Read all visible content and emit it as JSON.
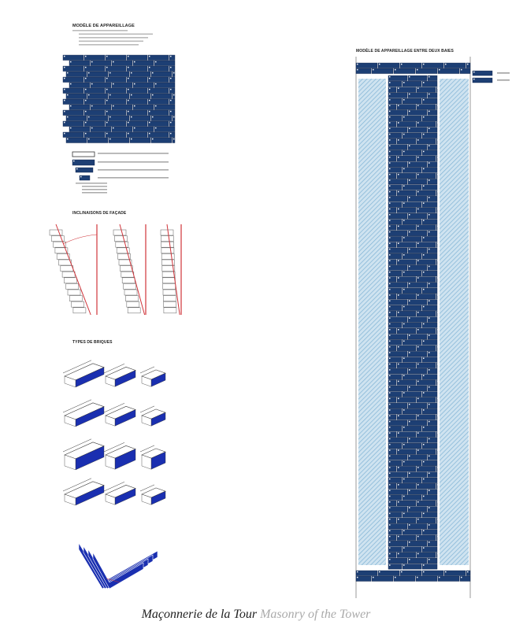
{
  "sections": {
    "bond_model": "MODÈLE DE APPAREILLAGE",
    "facade": "INCLINAISONS DE FAÇADE",
    "brick_types": "TYPES DE BRIQUES",
    "between_bays": "MODÈLE DE APPAREILLAGE ENTRE DEUX BAIES"
  },
  "caption": {
    "french": "Maçonnerie de la Tour",
    "english": "Masonry of the Tower"
  },
  "colors": {
    "brick": "#1d3f74",
    "brick_iso": "#1a2fb0",
    "annotation": "#d0343a",
    "hatch": "#7fb3d5"
  }
}
